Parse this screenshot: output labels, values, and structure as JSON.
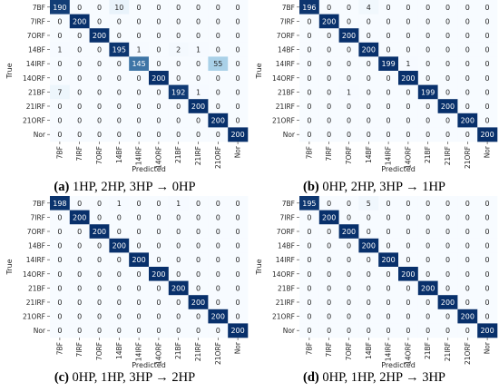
{
  "chart_data": [
    {
      "type": "heatmap",
      "caption_label": "(a)",
      "caption_text": "1HP, 2HP, 3HP → 0HP",
      "xlabel": "Predicted",
      "ylabel": "True",
      "categories": [
        "7BF",
        "7IRF",
        "7ORF",
        "14BF",
        "14IRF",
        "14ORF",
        "21BF",
        "21IRF",
        "21ORF",
        "Nor"
      ],
      "matrix": [
        [
          190,
          0,
          0,
          10,
          0,
          0,
          0,
          0,
          0,
          0
        ],
        [
          0,
          200,
          0,
          0,
          0,
          0,
          0,
          0,
          0,
          0
        ],
        [
          0,
          0,
          200,
          0,
          0,
          0,
          0,
          0,
          0,
          0
        ],
        [
          1,
          0,
          0,
          195,
          1,
          0,
          2,
          1,
          0,
          0
        ],
        [
          0,
          0,
          0,
          0,
          145,
          0,
          0,
          0,
          55,
          0
        ],
        [
          0,
          0,
          0,
          0,
          0,
          200,
          0,
          0,
          0,
          0
        ],
        [
          7,
          0,
          0,
          0,
          0,
          0,
          192,
          1,
          0,
          0
        ],
        [
          0,
          0,
          0,
          0,
          0,
          0,
          0,
          200,
          0,
          0
        ],
        [
          0,
          0,
          0,
          0,
          0,
          0,
          0,
          0,
          200,
          0
        ],
        [
          0,
          0,
          0,
          0,
          0,
          0,
          0,
          0,
          0,
          200
        ]
      ],
      "color_max": 200
    },
    {
      "type": "heatmap",
      "caption_label": "(b)",
      "caption_text": "0HP, 2HP, 3HP → 1HP",
      "xlabel": "Predicted",
      "ylabel": "True",
      "categories": [
        "7BF",
        "7IRF",
        "7ORF",
        "14BF",
        "14IRF",
        "14ORF",
        "21BF",
        "21IRF",
        "21ORF",
        "Nor"
      ],
      "matrix": [
        [
          196,
          0,
          0,
          4,
          0,
          0,
          0,
          0,
          0,
          0
        ],
        [
          0,
          200,
          0,
          0,
          0,
          0,
          0,
          0,
          0,
          0
        ],
        [
          0,
          0,
          200,
          0,
          0,
          0,
          0,
          0,
          0,
          0
        ],
        [
          0,
          0,
          0,
          200,
          0,
          0,
          0,
          0,
          0,
          0
        ],
        [
          0,
          0,
          0,
          0,
          199,
          1,
          0,
          0,
          0,
          0
        ],
        [
          0,
          0,
          0,
          0,
          0,
          200,
          0,
          0,
          0,
          0
        ],
        [
          0,
          0,
          1,
          0,
          0,
          0,
          199,
          0,
          0,
          0
        ],
        [
          0,
          0,
          0,
          0,
          0,
          0,
          0,
          200,
          0,
          0
        ],
        [
          0,
          0,
          0,
          0,
          0,
          0,
          0,
          0,
          200,
          0
        ],
        [
          0,
          0,
          0,
          0,
          0,
          0,
          0,
          0,
          0,
          200
        ]
      ],
      "color_max": 200
    },
    {
      "type": "heatmap",
      "caption_label": "(c)",
      "caption_text": "0HP, 1HP, 3HP → 2HP",
      "xlabel": "Predicted",
      "ylabel": "True",
      "categories": [
        "7BF",
        "7IRF",
        "7ORF",
        "14BF",
        "14IRF",
        "14ORF",
        "21BF",
        "21IRF",
        "21ORF",
        "Nor"
      ],
      "matrix": [
        [
          198,
          0,
          0,
          1,
          0,
          0,
          1,
          0,
          0,
          0
        ],
        [
          0,
          200,
          0,
          0,
          0,
          0,
          0,
          0,
          0,
          0
        ],
        [
          0,
          0,
          200,
          0,
          0,
          0,
          0,
          0,
          0,
          0
        ],
        [
          0,
          0,
          0,
          200,
          0,
          0,
          0,
          0,
          0,
          0
        ],
        [
          0,
          0,
          0,
          0,
          200,
          0,
          0,
          0,
          0,
          0
        ],
        [
          0,
          0,
          0,
          0,
          0,
          200,
          0,
          0,
          0,
          0
        ],
        [
          0,
          0,
          0,
          0,
          0,
          0,
          200,
          0,
          0,
          0
        ],
        [
          0,
          0,
          0,
          0,
          0,
          0,
          0,
          200,
          0,
          0
        ],
        [
          0,
          0,
          0,
          0,
          0,
          0,
          0,
          0,
          200,
          0
        ],
        [
          0,
          0,
          0,
          0,
          0,
          0,
          0,
          0,
          0,
          200
        ]
      ],
      "color_max": 200
    },
    {
      "type": "heatmap",
      "caption_label": "(d)",
      "caption_text": "0HP, 1HP, 2HP → 3HP",
      "xlabel": "Predicted",
      "ylabel": "True",
      "categories": [
        "7BF",
        "7IRF",
        "7ORF",
        "14BF",
        "14IRF",
        "14ORF",
        "21BF",
        "21IRF",
        "21ORF",
        "Nor"
      ],
      "matrix": [
        [
          195,
          0,
          0,
          5,
          0,
          0,
          0,
          0,
          0,
          0
        ],
        [
          0,
          200,
          0,
          0,
          0,
          0,
          0,
          0,
          0,
          0
        ],
        [
          0,
          0,
          200,
          0,
          0,
          0,
          0,
          0,
          0,
          0
        ],
        [
          0,
          0,
          0,
          200,
          0,
          0,
          0,
          0,
          0,
          0
        ],
        [
          0,
          0,
          0,
          0,
          200,
          0,
          0,
          0,
          0,
          0
        ],
        [
          0,
          0,
          0,
          0,
          0,
          200,
          0,
          0,
          0,
          0
        ],
        [
          0,
          0,
          0,
          0,
          0,
          0,
          200,
          0,
          0,
          0
        ],
        [
          0,
          0,
          0,
          0,
          0,
          0,
          0,
          200,
          0,
          0
        ],
        [
          0,
          0,
          0,
          0,
          0,
          0,
          0,
          0,
          200,
          0
        ],
        [
          0,
          0,
          0,
          0,
          0,
          0,
          0,
          0,
          0,
          200
        ]
      ],
      "color_max": 200
    }
  ],
  "colors": {
    "low": "#f7fbff",
    "mid": "#6baed6",
    "high": "#08306b",
    "text_dark": "#262626",
    "text_light": "#ffffff"
  }
}
